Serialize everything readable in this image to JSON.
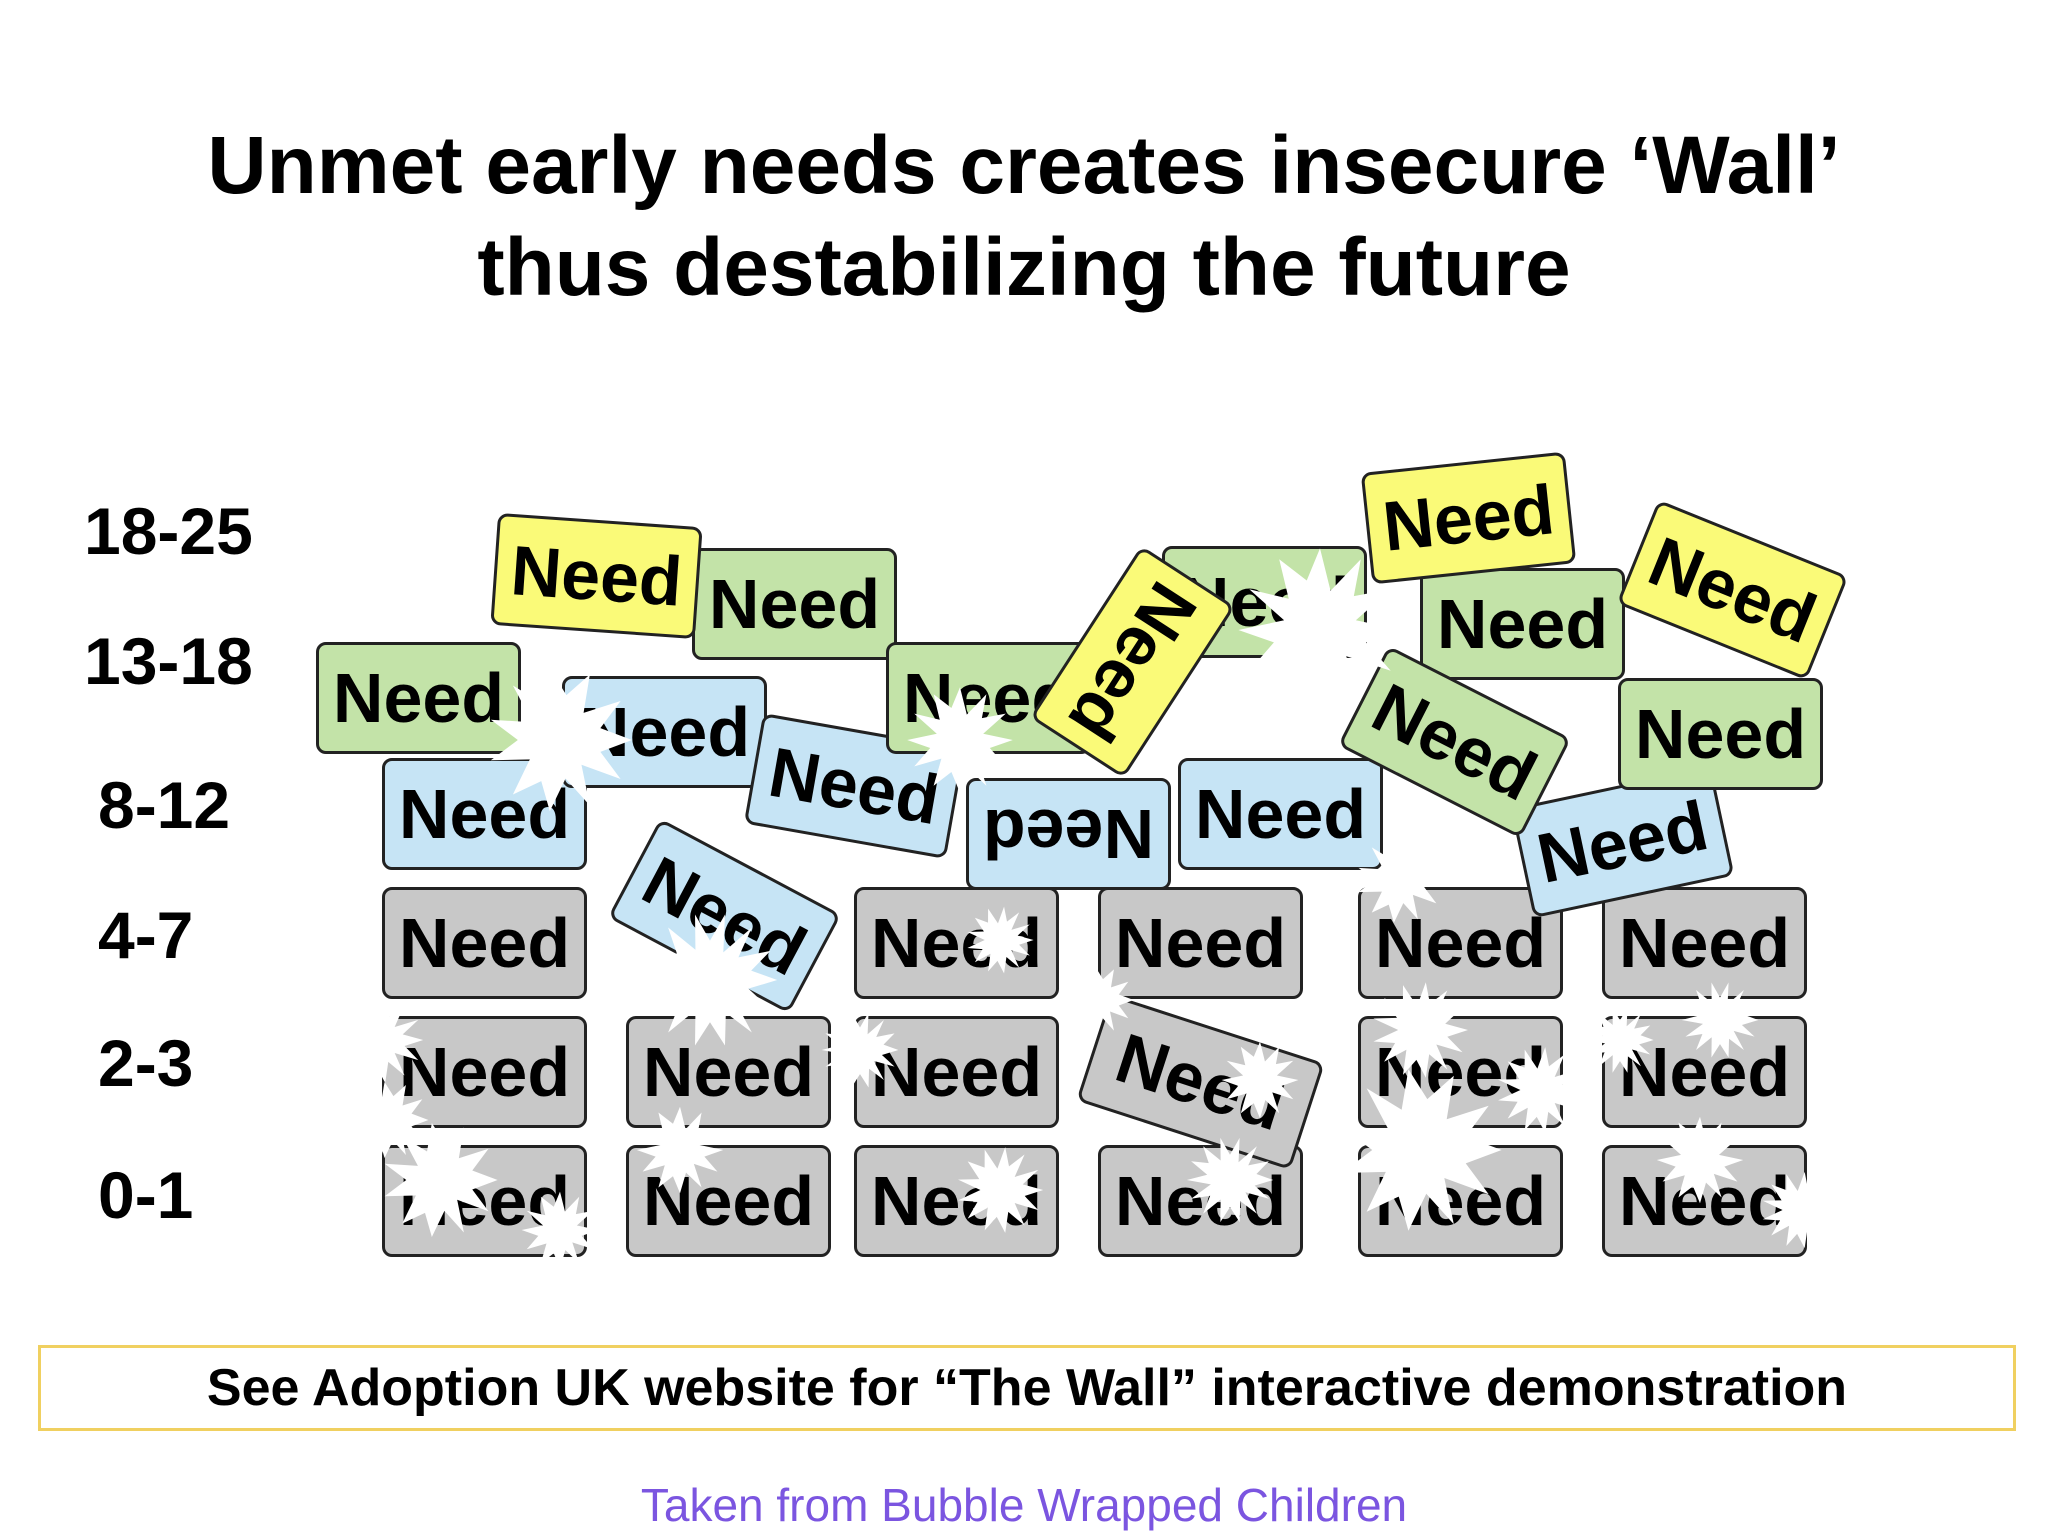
{
  "title_line1": "Unmet early needs creates insecure ‘Wall’",
  "title_line2": "thus destabilizing the future",
  "age_labels": [
    "18-25",
    "13-18",
    "8-12",
    "4-7",
    "2-3",
    "0-1"
  ],
  "bricks": [
    {
      "label": "Need",
      "row": "0-1",
      "color": "grey",
      "damaged": true
    },
    {
      "label": "Need",
      "row": "0-1",
      "color": "grey",
      "damaged": true
    },
    {
      "label": "Need",
      "row": "0-1",
      "color": "grey",
      "damaged": true
    },
    {
      "label": "Need",
      "row": "0-1",
      "color": "grey",
      "damaged": true
    },
    {
      "label": "Need",
      "row": "0-1",
      "color": "grey",
      "damaged": true
    },
    {
      "label": "Need",
      "row": "0-1",
      "color": "grey",
      "damaged": true
    },
    {
      "label": "Need",
      "row": "2-3",
      "color": "grey",
      "damaged": true
    },
    {
      "label": "Need",
      "row": "2-3",
      "color": "grey",
      "damaged": true
    },
    {
      "label": "Need",
      "row": "2-3",
      "color": "grey",
      "damaged": true
    },
    {
      "label": "Need",
      "row": "2-3",
      "color": "grey",
      "damaged": true
    },
    {
      "label": "Need",
      "row": "2-3",
      "color": "grey",
      "damaged": true
    },
    {
      "label": "Need",
      "row": "2-3",
      "color": "grey",
      "damaged": true
    },
    {
      "label": "Need",
      "row": "4-7",
      "color": "grey",
      "damaged": false
    },
    {
      "label": "Need",
      "row": "4-7",
      "color": "blue",
      "damaged": false
    },
    {
      "label": "Need",
      "row": "4-7",
      "color": "grey",
      "damaged": false
    },
    {
      "label": "Need",
      "row": "4-7",
      "color": "grey",
      "damaged": false
    },
    {
      "label": "Need",
      "row": "4-7",
      "color": "grey",
      "damaged": true
    },
    {
      "label": "Need",
      "row": "4-7",
      "color": "grey",
      "damaged": true
    },
    {
      "label": "Need",
      "row": "8-12",
      "color": "blue",
      "damaged": true
    },
    {
      "label": "Need",
      "row": "8-12",
      "color": "blue",
      "damaged": false
    },
    {
      "label": "Need",
      "row": "8-12",
      "color": "blue",
      "damaged": false
    },
    {
      "label": "Need",
      "row": "8-12",
      "color": "blue",
      "damaged": false
    },
    {
      "label": "Need",
      "row": "8-12",
      "color": "blue",
      "damaged": false
    },
    {
      "label": "Need",
      "row": "8-12",
      "color": "blue",
      "damaged": false
    },
    {
      "label": "Need",
      "row": "13-18",
      "color": "green",
      "damaged": false
    },
    {
      "label": "Need",
      "row": "13-18",
      "color": "green",
      "damaged": false
    },
    {
      "label": "Need",
      "row": "13-18",
      "color": "green",
      "damaged": false
    },
    {
      "label": "Need",
      "row": "13-18",
      "color": "green",
      "damaged": false
    },
    {
      "label": "Need",
      "row": "13-18",
      "color": "green",
      "damaged": false
    },
    {
      "label": "Need",
      "row": "13-18",
      "color": "green",
      "damaged": false
    },
    {
      "label": "Need",
      "row": "13-18",
      "color": "green",
      "damaged": false
    },
    {
      "label": "Need",
      "row": "18-25",
      "color": "yellow",
      "damaged": false
    },
    {
      "label": "Need",
      "row": "18-25",
      "color": "yellow",
      "damaged": false
    },
    {
      "label": "Need",
      "row": "18-25",
      "color": "yellow",
      "damaged": false
    },
    {
      "label": "Need",
      "row": "18-25",
      "color": "yellow",
      "damaged": false
    }
  ],
  "colors": {
    "grey": "#c8c8c8",
    "blue": "#c6e4f5",
    "green": "#c3e3a8",
    "yellow": "#fafa78",
    "credit": "#7b55e0",
    "note_border": "#f0d060"
  },
  "note": "See Adoption UK website for “The Wall” interactive demonstration",
  "credit": "Taken from Bubble Wrapped Children"
}
